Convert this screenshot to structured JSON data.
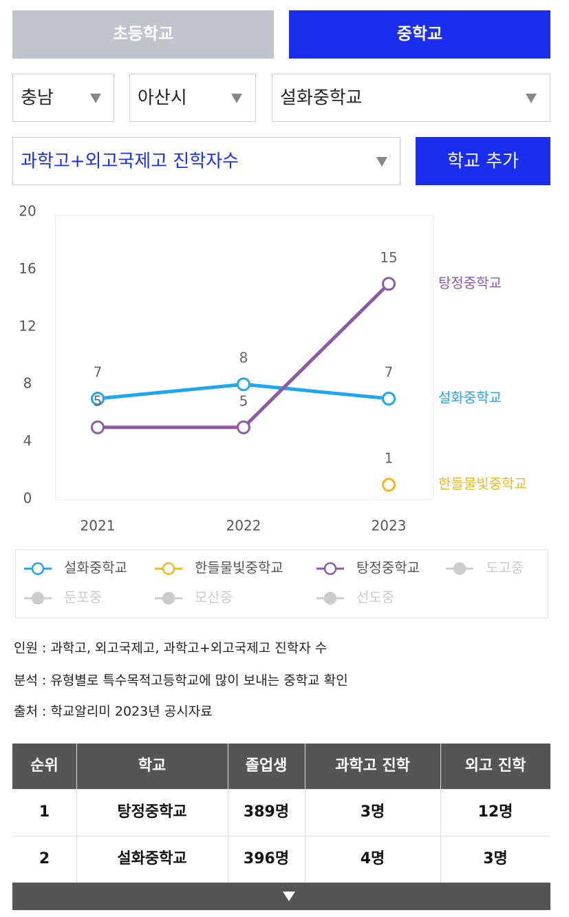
{
  "tabs": [
    "초등학교",
    "중학교"
  ],
  "filters": [
    "충남",
    "아산시",
    "설화중학교"
  ],
  "metric": "과학고+외고국제고 진학자수",
  "add_button": "학교 추가",
  "chart_data": {
    "type": "line",
    "categories": [
      "2021",
      "2022",
      "2023"
    ],
    "series": [
      {
        "name": "설화중학교",
        "color": "#1ea7ef",
        "values": [
          7,
          8,
          7
        ]
      },
      {
        "name": "한들물빛중학교",
        "color": "#f5b71a",
        "values": [
          null,
          null,
          1
        ]
      },
      {
        "name": "탕정중학교",
        "color": "#8b5ba6",
        "values": [
          5,
          5,
          15
        ]
      },
      {
        "name": "도고중",
        "color": "#cccccc",
        "values": [
          null,
          null,
          null
        ]
      },
      {
        "name": "둔포중",
        "color": "#cccccc",
        "values": [
          null,
          null,
          null
        ]
      },
      {
        "name": "모산중",
        "color": "#cccccc",
        "values": [
          null,
          null,
          null
        ]
      },
      {
        "name": "선도중",
        "color": "#cccccc",
        "values": [
          null,
          null,
          null
        ]
      }
    ],
    "ylim": [
      0,
      20
    ],
    "yticks": [
      0,
      4,
      8,
      12,
      16,
      20
    ],
    "grid": false
  },
  "notes": [
    "인원 : 과학고, 외고국제고, 과학고+외고국제고 진학자 수",
    "분석 : 유형별로 특수목적고등학교에 많이 보내는 중학교 확인",
    "출처 : 학교알리미 2023년 공시자료"
  ],
  "table": {
    "header": [
      "순위",
      "학교",
      "졸업생",
      "과학고 진학",
      "외고 진학"
    ],
    "rows": [
      [
        "1",
        "탕정중학교",
        "389명",
        "3명",
        "12명"
      ],
      [
        "2",
        "설화중학교",
        "396명",
        "4명",
        "3명"
      ]
    ]
  }
}
